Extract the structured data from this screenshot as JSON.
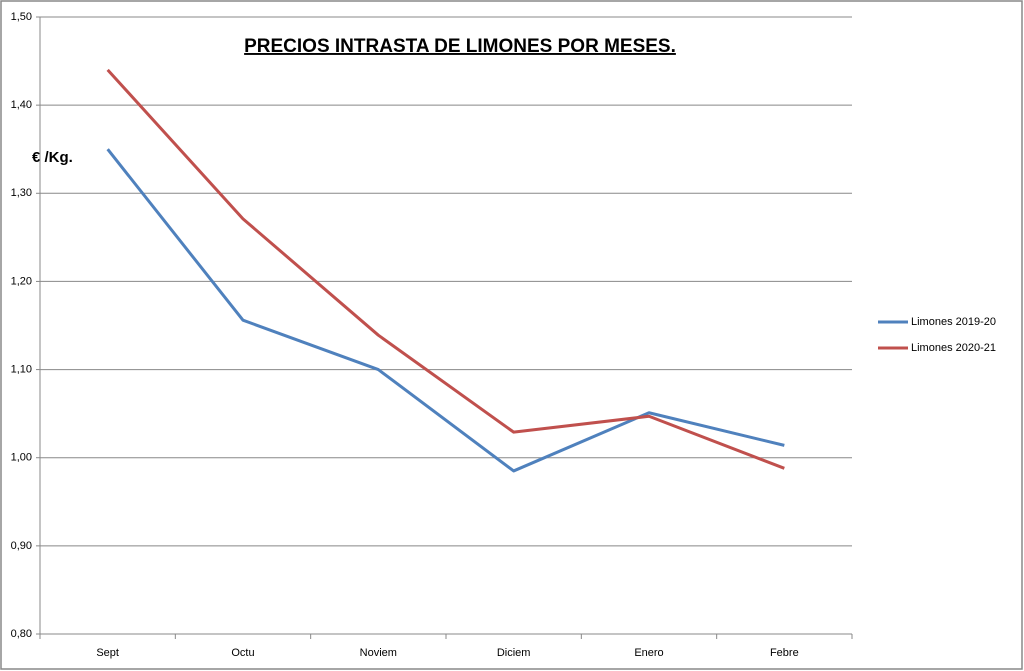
{
  "chart_data": {
    "type": "line",
    "title": "PRECIOS INTRASTA DE LIMONES POR MESES.",
    "y_label": "€ /Kg.",
    "categories": [
      "Sept",
      "Octu",
      "Noviem",
      "Diciem",
      "Enero",
      "Febre"
    ],
    "series": [
      {
        "name": "Limones 2019-20",
        "color": "#4f81bd",
        "values": [
          1.35,
          1.156,
          1.1,
          0.985,
          1.051,
          1.014
        ]
      },
      {
        "name": "Limones 2020-21",
        "color": "#c0504d",
        "values": [
          1.44,
          1.271,
          1.139,
          1.029,
          1.047,
          0.988
        ]
      }
    ],
    "ylim": [
      0.8,
      1.5
    ],
    "yticks": [
      {
        "value": 0.8,
        "label": "0,80"
      },
      {
        "value": 0.9,
        "label": "0,90"
      },
      {
        "value": 1.0,
        "label": "1,00"
      },
      {
        "value": 1.1,
        "label": "1,10"
      },
      {
        "value": 1.2,
        "label": "1,20"
      },
      {
        "value": 1.3,
        "label": "1,30"
      },
      {
        "value": 1.4,
        "label": "1,40"
      },
      {
        "value": 1.5,
        "label": "1,50"
      }
    ],
    "grid": true,
    "legend": "right"
  }
}
